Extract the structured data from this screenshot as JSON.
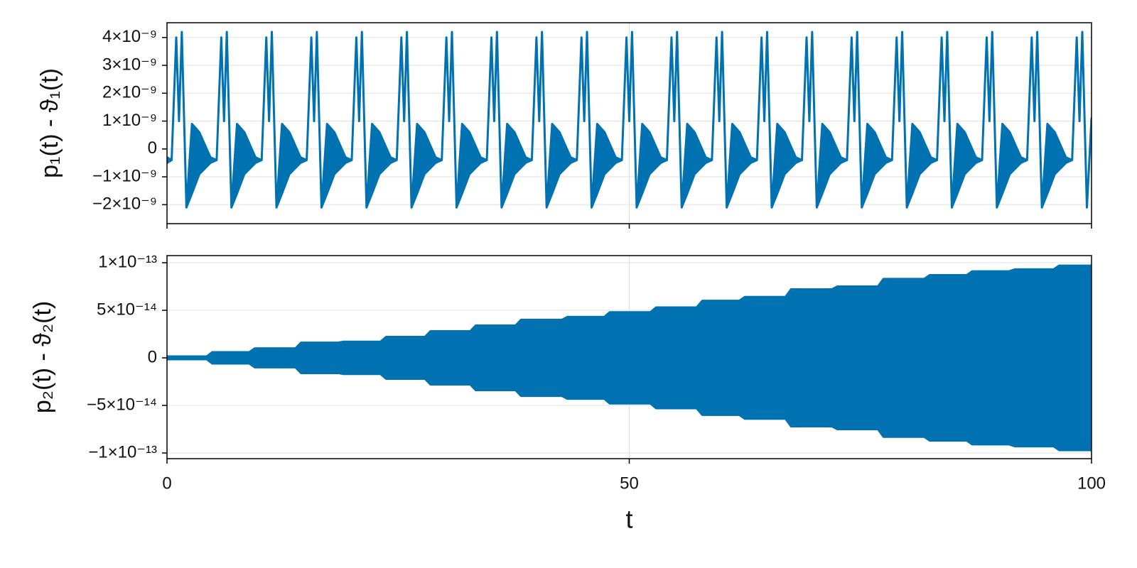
{
  "chart_data": [
    {
      "type": "band",
      "ylabel": "p₁(t) - ϑ₁(t)",
      "color": "#0072b2",
      "grid": true,
      "show_xtick_labels": false,
      "xlim": [
        0,
        100
      ],
      "ylim": [
        -2.68e-09,
        4.53e-09
      ],
      "xticks": [
        0,
        50,
        100
      ],
      "yticks": [
        {
          "value": 4e-09,
          "label": "4×10⁻⁹"
        },
        {
          "value": 3e-09,
          "label": "3×10⁻⁹"
        },
        {
          "value": 2e-09,
          "label": "2×10⁻⁹"
        },
        {
          "value": 1e-09,
          "label": "1×10⁻⁹"
        },
        0,
        {
          "value": -1e-09,
          "label": "−1×10⁻⁹"
        },
        {
          "value": -2e-09,
          "label": "−2×10⁻⁹"
        }
      ],
      "x": [
        0,
        0.5,
        1.0,
        1.3,
        1.6,
        2.1,
        2.7,
        3.5,
        4.7,
        5.37,
        5.87,
        6.17,
        6.47,
        6.97,
        7.57,
        8.37,
        9.57,
        10.24,
        10.74,
        11.04,
        11.34,
        11.84,
        12.44,
        13.24,
        14.44,
        15.11,
        15.61,
        15.91,
        16.21,
        16.71,
        17.31,
        18.11,
        19.31,
        19.98,
        20.48,
        20.78,
        21.08,
        21.58,
        22.18,
        22.98,
        24.18,
        24.85,
        25.35,
        25.65,
        25.95,
        26.45,
        27.05,
        27.85,
        29.05,
        29.72,
        30.22,
        30.52,
        30.82,
        31.32,
        31.92,
        32.72,
        33.92,
        34.59,
        35.09,
        35.39,
        35.69,
        36.19,
        36.79,
        37.59,
        38.79,
        39.46,
        39.96,
        40.26,
        40.56,
        41.06,
        41.66,
        42.46,
        43.66,
        44.33,
        44.83,
        45.13,
        45.43,
        45.93,
        46.53,
        47.33,
        48.53,
        49.2,
        49.7,
        50.0,
        50.3,
        50.8,
        51.4,
        52.2,
        53.4,
        54.07,
        54.57,
        54.87,
        55.17,
        55.67,
        56.27,
        57.07,
        58.27,
        58.94,
        59.44,
        59.74,
        60.04,
        60.54,
        61.14,
        61.94,
        63.14,
        63.81,
        64.31,
        64.61,
        64.91,
        65.41,
        66.01,
        66.81,
        68.01,
        68.68,
        69.18,
        69.48,
        69.78,
        70.28,
        70.88,
        71.68,
        72.88,
        73.55,
        74.05,
        74.35,
        74.65,
        75.15,
        75.75,
        76.55,
        77.75,
        78.42,
        78.92,
        79.22,
        79.52,
        80.02,
        80.62,
        81.42,
        82.62,
        83.29,
        83.79,
        84.09,
        84.39,
        84.89,
        85.49,
        86.29,
        87.49,
        88.16,
        88.66,
        88.96,
        89.26,
        89.76,
        90.36,
        91.16,
        92.36,
        93.03,
        93.53,
        93.83,
        94.13,
        94.63,
        95.23,
        96.03,
        97.23,
        97.9,
        98.4,
        98.7,
        99.0,
        99.5,
        100
      ],
      "upper": [
        -3e-10,
        -4e-10,
        4e-09,
        1e-09,
        4.2e-09,
        -2.1e-09,
        9e-10,
        6e-10,
        -3e-10,
        -4e-10,
        4e-09,
        1e-09,
        4.2e-09,
        -2.1e-09,
        9e-10,
        6e-10,
        -3e-10,
        -4e-10,
        4e-09,
        1e-09,
        4.2e-09,
        -2.1e-09,
        9e-10,
        6e-10,
        -3e-10,
        -4e-10,
        4e-09,
        1e-09,
        4.2e-09,
        -2.1e-09,
        9e-10,
        6e-10,
        -3e-10,
        -4e-10,
        4e-09,
        1e-09,
        4.2e-09,
        -2.1e-09,
        9e-10,
        6e-10,
        -3e-10,
        -4e-10,
        4e-09,
        1e-09,
        4.2e-09,
        -2.1e-09,
        9e-10,
        6e-10,
        -3e-10,
        -4e-10,
        4e-09,
        1e-09,
        4.2e-09,
        -2.1e-09,
        9e-10,
        6e-10,
        -3e-10,
        -4e-10,
        4e-09,
        1e-09,
        4.2e-09,
        -2.1e-09,
        9e-10,
        6e-10,
        -3e-10,
        -4e-10,
        4e-09,
        1e-09,
        4.2e-09,
        -2.1e-09,
        9e-10,
        6e-10,
        -3e-10,
        -4e-10,
        4e-09,
        1e-09,
        4.2e-09,
        -2.1e-09,
        9e-10,
        6e-10,
        -3e-10,
        -4e-10,
        4e-09,
        1e-09,
        4.2e-09,
        -2.1e-09,
        9e-10,
        6e-10,
        -3e-10,
        -4e-10,
        4e-09,
        1e-09,
        4.2e-09,
        -2.1e-09,
        9e-10,
        6e-10,
        -3e-10,
        -4e-10,
        4e-09,
        1e-09,
        4.2e-09,
        -2.1e-09,
        9e-10,
        6e-10,
        -3e-10,
        -4e-10,
        4e-09,
        1e-09,
        4.2e-09,
        -2.1e-09,
        9e-10,
        6e-10,
        -3e-10,
        -4e-10,
        4e-09,
        1e-09,
        4.2e-09,
        -2.1e-09,
        9e-10,
        6e-10,
        -3e-10,
        -4e-10,
        4e-09,
        1e-09,
        4.2e-09,
        -2.1e-09,
        9e-10,
        6e-10,
        -3e-10,
        -4e-10,
        4e-09,
        1e-09,
        4.2e-09,
        -2.1e-09,
        9e-10,
        6e-10,
        -3e-10,
        -4e-10,
        4e-09,
        1e-09,
        4.2e-09,
        -2.1e-09,
        9e-10,
        6e-10,
        -3e-10,
        -4e-10,
        4e-09,
        1e-09,
        4.2e-09,
        -2.1e-09,
        9e-10,
        6e-10,
        -3e-10,
        -4e-10,
        4e-09,
        1e-09,
        4.2e-09,
        -2.1e-09,
        9e-10,
        6e-10,
        -3e-10,
        -4e-10,
        4e-09,
        1e-09,
        4.2e-09,
        -2.1e-09,
        1.1e-09
      ],
      "lower": [
        -5e-10,
        -4e-10,
        4e-09,
        1e-09,
        4.2e-09,
        -2.1e-09,
        -1.6e-09,
        -9e-10,
        -5e-10,
        -4e-10,
        4e-09,
        1e-09,
        4.2e-09,
        -2.1e-09,
        -1.6e-09,
        -9e-10,
        -5e-10,
        -4e-10,
        4e-09,
        1e-09,
        4.2e-09,
        -2.1e-09,
        -1.6e-09,
        -9e-10,
        -5e-10,
        -4e-10,
        4e-09,
        1e-09,
        4.2e-09,
        -2.1e-09,
        -1.6e-09,
        -9e-10,
        -5e-10,
        -4e-10,
        4e-09,
        1e-09,
        4.2e-09,
        -2.1e-09,
        -1.6e-09,
        -9e-10,
        -5e-10,
        -4e-10,
        4e-09,
        1e-09,
        4.2e-09,
        -2.1e-09,
        -1.6e-09,
        -9e-10,
        -5e-10,
        -4e-10,
        4e-09,
        1e-09,
        4.2e-09,
        -2.1e-09,
        -1.6e-09,
        -9e-10,
        -5e-10,
        -4e-10,
        4e-09,
        1e-09,
        4.2e-09,
        -2.1e-09,
        -1.6e-09,
        -9e-10,
        -5e-10,
        -4e-10,
        4e-09,
        1e-09,
        4.2e-09,
        -2.1e-09,
        -1.6e-09,
        -9e-10,
        -5e-10,
        -4e-10,
        4e-09,
        1e-09,
        4.2e-09,
        -2.1e-09,
        -1.6e-09,
        -9e-10,
        -5e-10,
        -4e-10,
        4e-09,
        1e-09,
        4.2e-09,
        -2.1e-09,
        -1.6e-09,
        -9e-10,
        -5e-10,
        -4e-10,
        4e-09,
        1e-09,
        4.2e-09,
        -2.1e-09,
        -1.6e-09,
        -9e-10,
        -5e-10,
        -4e-10,
        4e-09,
        1e-09,
        4.2e-09,
        -2.1e-09,
        -1.6e-09,
        -9e-10,
        -5e-10,
        -4e-10,
        4e-09,
        1e-09,
        4.2e-09,
        -2.1e-09,
        -1.6e-09,
        -9e-10,
        -5e-10,
        -4e-10,
        4e-09,
        1e-09,
        4.2e-09,
        -2.1e-09,
        -1.6e-09,
        -9e-10,
        -5e-10,
        -4e-10,
        4e-09,
        1e-09,
        4.2e-09,
        -2.1e-09,
        -1.6e-09,
        -9e-10,
        -5e-10,
        -4e-10,
        4e-09,
        1e-09,
        4.2e-09,
        -2.1e-09,
        -1.6e-09,
        -9e-10,
        -5e-10,
        -4e-10,
        4e-09,
        1e-09,
        4.2e-09,
        -2.1e-09,
        -1.6e-09,
        -9e-10,
        -5e-10,
        -4e-10,
        4e-09,
        1e-09,
        4.2e-09,
        -2.1e-09,
        -1.6e-09,
        -9e-10,
        -5e-10,
        -4e-10,
        4e-09,
        1e-09,
        4.2e-09,
        -2.1e-09,
        -1.6e-09,
        -9e-10,
        -5e-10,
        -4e-10,
        4e-09,
        1e-09,
        4.2e-09,
        -2.1e-09,
        1.1e-09
      ]
    },
    {
      "type": "band",
      "ylabel": "p₂(t) - ϑ₂(t)",
      "xlabel": "t",
      "color": "#0072b2",
      "grid": true,
      "show_xtick_labels": true,
      "xlim": [
        0,
        100
      ],
      "ylim": [
        -1.06e-13,
        1.075e-13
      ],
      "xticks": [
        0,
        50,
        100
      ],
      "yticks": [
        {
          "value": 1e-13,
          "label": "1×10⁻¹³"
        },
        {
          "value": 5e-14,
          "label": "5×10⁻¹⁴"
        },
        0,
        {
          "value": -5e-14,
          "label": "−5×10⁻¹⁴"
        },
        {
          "value": -1e-13,
          "label": "−1×10⁻¹³"
        }
      ],
      "x": [
        0,
        4.3,
        4.9,
        8.9,
        9.5,
        13.9,
        14.5,
        18.5,
        19.1,
        23.1,
        23.7,
        27.9,
        28.5,
        32.8,
        33.4,
        37.7,
        38.3,
        42.7,
        43.3,
        47.3,
        47.9,
        52.3,
        52.9,
        57.3,
        57.9,
        61.9,
        62.5,
        66.9,
        67.5,
        71.9,
        72.5,
        76.9,
        77.5,
        81.9,
        82.5,
        86.5,
        87.1,
        91.1,
        91.7,
        95.9,
        96.5,
        100
      ],
      "upper": [
        1.5e-15,
        1.5e-15,
        6e-15,
        6e-15,
        1e-14,
        1e-14,
        1.6e-14,
        1.6e-14,
        1.7e-14,
        1.7e-14,
        2.2e-14,
        2.2e-14,
        2.8e-14,
        2.8e-14,
        3.4e-14,
        3.4e-14,
        4e-14,
        4e-14,
        4.3e-14,
        4.3e-14,
        4.8e-14,
        4.8e-14,
        5.3e-14,
        5.3e-14,
        6e-14,
        6e-14,
        6.4e-14,
        6.4e-14,
        7.2e-14,
        7.2e-14,
        7.5e-14,
        7.5e-14,
        8.3e-14,
        8.3e-14,
        8.7e-14,
        8.7e-14,
        9.1e-14,
        9.1e-14,
        9.3e-14,
        9.3e-14,
        9.7e-14,
        9.7e-14
      ],
      "lower": [
        -1.5e-15,
        -1.5e-15,
        -6e-15,
        -6e-15,
        -1e-14,
        -1e-14,
        -1.6e-14,
        -1.6e-14,
        -1.7e-14,
        -1.7e-14,
        -2.2e-14,
        -2.2e-14,
        -2.8e-14,
        -2.8e-14,
        -3.4e-14,
        -3.4e-14,
        -4e-14,
        -4e-14,
        -4.3e-14,
        -4.3e-14,
        -4.8e-14,
        -4.8e-14,
        -5.3e-14,
        -5.3e-14,
        -6e-14,
        -6e-14,
        -6.4e-14,
        -6.4e-14,
        -7.2e-14,
        -7.2e-14,
        -7.5e-14,
        -7.5e-14,
        -8.3e-14,
        -8.3e-14,
        -8.7e-14,
        -8.7e-14,
        -9.1e-14,
        -9.1e-14,
        -9.3e-14,
        -9.3e-14,
        -9.7e-14,
        -9.7e-14
      ]
    }
  ]
}
